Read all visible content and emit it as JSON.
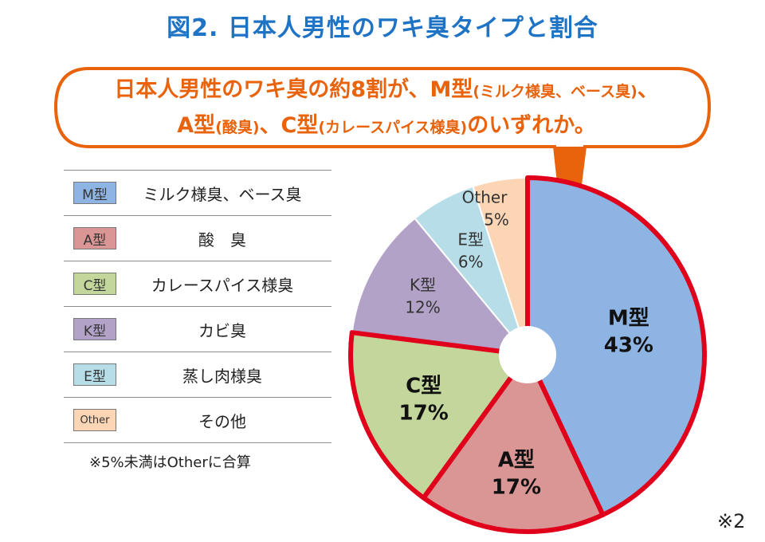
{
  "title": "図2. 日本人男性のワキ臭タイプと割合",
  "callout": {
    "line1_big_a": "日本人男性のワキ臭の約8割が、M型",
    "line1_small": "(ミルク様臭、ベース臭)",
    "line1_big_b": "、",
    "line2_big_a": "A型",
    "line2_small_a": "(酸臭)",
    "line2_big_b": "、C型",
    "line2_small_b": "(カレースパイス様臭)",
    "line2_big_c": "のいずれか。"
  },
  "legend": [
    {
      "code": "M型",
      "desc": "ミルク様臭、ベース臭",
      "color": "#8eb4e3"
    },
    {
      "code": "A型",
      "desc": "酸　臭",
      "color": "#d99694"
    },
    {
      "code": "C型",
      "desc": "カレースパイス様臭",
      "color": "#c3d69b"
    },
    {
      "code": "K型",
      "desc": "カビ臭",
      "color": "#b3a2c7"
    },
    {
      "code": "E型",
      "desc": "蒸し肉様臭",
      "color": "#b7dee8"
    },
    {
      "code": "Other",
      "desc": "その他",
      "color": "#fcd5b5"
    }
  ],
  "note": "※5%未満はOtherに合算",
  "ref": "※2",
  "chart_data": {
    "type": "pie",
    "categories": [
      "M型",
      "A型",
      "C型",
      "K型",
      "E型",
      "Other"
    ],
    "values": [
      43,
      17,
      17,
      12,
      6,
      5
    ],
    "value_labels": [
      "43%",
      "17%",
      "17%",
      "12%",
      "6%",
      "5%"
    ],
    "colors": [
      "#8eb4e3",
      "#d99694",
      "#c3d69b",
      "#b3a2c7",
      "#b7dee8",
      "#fcd5b5"
    ],
    "highlighted": [
      "M型",
      "A型",
      "C型"
    ],
    "highlight_color": "#e0001b",
    "start": "12 o'clock, clockwise",
    "donut_hole": true
  }
}
